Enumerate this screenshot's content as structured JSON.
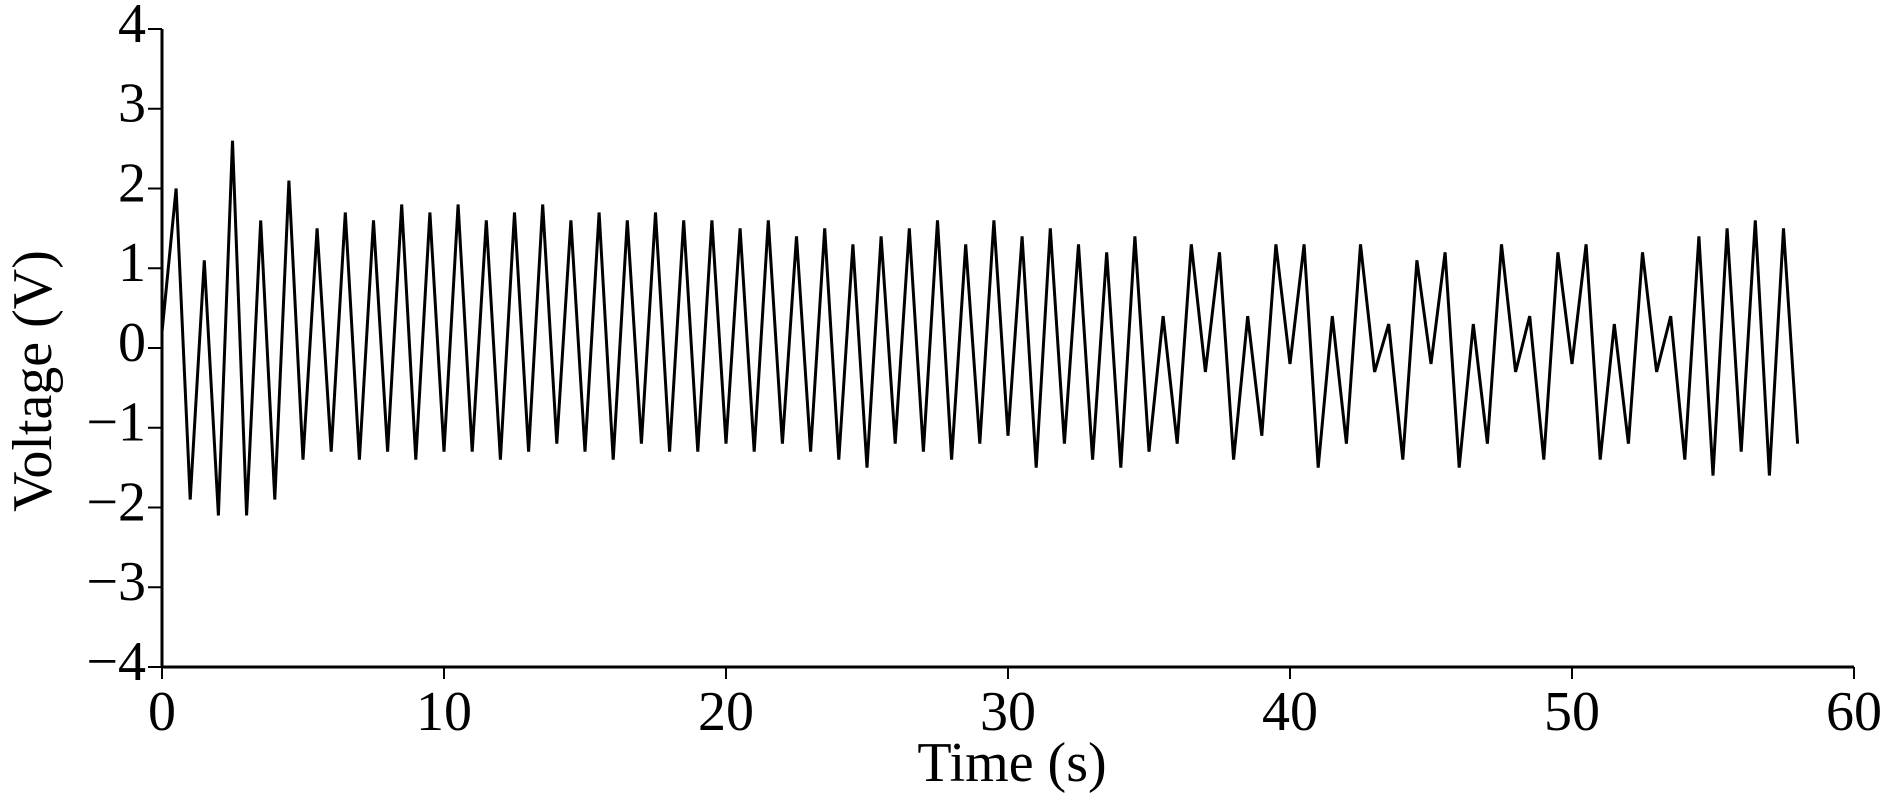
{
  "chart_data": {
    "type": "line",
    "x_label": "Time (s)",
    "y_label": "Voltage (V)",
    "x": [
      0,
      0.5,
      1,
      1.5,
      2,
      2.5,
      3,
      3.5,
      4,
      4.5,
      5,
      5.5,
      6,
      6.5,
      7,
      7.5,
      8,
      8.5,
      9,
      9.5,
      10,
      10.5,
      11,
      11.5,
      12,
      12.5,
      13,
      13.5,
      14,
      14.5,
      15,
      15.5,
      16,
      16.5,
      17,
      17.5,
      18,
      18.5,
      19,
      19.5,
      20,
      20.5,
      21,
      21.5,
      22,
      22.5,
      23,
      23.5,
      24,
      24.5,
      25,
      25.5,
      26,
      26.5,
      27,
      27.5,
      28,
      28.5,
      29,
      29.5,
      30,
      30.5,
      31,
      31.5,
      32,
      32.5,
      33,
      33.5,
      34,
      34.5,
      35,
      35.5,
      36,
      36.5,
      37,
      37.5,
      38,
      38.5,
      39,
      39.5,
      40,
      40.5,
      41,
      41.5,
      42,
      42.5,
      43,
      43.5,
      44,
      44.5,
      45,
      45.5,
      46,
      46.5,
      47,
      47.5,
      48,
      48.5,
      49,
      49.5,
      50,
      50.5,
      51,
      51.5,
      52,
      52.5,
      53,
      53.5,
      54,
      54.5,
      55,
      55.5,
      56,
      56.5,
      57,
      57.5,
      58
    ],
    "series": [
      {
        "color": "#000000",
        "values": [
          0.2,
          2.0,
          -1.9,
          1.1,
          -2.1,
          2.6,
          -2.1,
          1.6,
          -1.9,
          2.1,
          -1.4,
          1.5,
          -1.3,
          1.7,
          -1.4,
          1.6,
          -1.3,
          1.8,
          -1.4,
          1.7,
          -1.3,
          1.8,
          -1.3,
          1.6,
          -1.4,
          1.7,
          -1.3,
          1.8,
          -1.2,
          1.6,
          -1.3,
          1.7,
          -1.4,
          1.6,
          -1.2,
          1.7,
          -1.3,
          1.6,
          -1.3,
          1.6,
          -1.2,
          1.5,
          -1.3,
          1.6,
          -1.2,
          1.4,
          -1.3,
          1.5,
          -1.4,
          1.3,
          -1.5,
          1.4,
          -1.2,
          1.5,
          -1.3,
          1.6,
          -1.4,
          1.3,
          -1.2,
          1.6,
          -1.1,
          1.4,
          -1.5,
          1.5,
          -1.2,
          1.3,
          -1.4,
          1.2,
          -1.5,
          1.4,
          -1.3,
          0.4,
          -1.2,
          1.3,
          -0.3,
          1.2,
          -1.4,
          0.4,
          -1.1,
          1.3,
          -0.2,
          1.3,
          -1.5,
          0.4,
          -1.2,
          1.3,
          -0.3,
          0.3,
          -1.4,
          1.1,
          -0.2,
          1.2,
          -1.5,
          0.3,
          -1.2,
          1.3,
          -0.3,
          0.4,
          -1.4,
          1.2,
          -0.2,
          1.3,
          -1.4,
          0.3,
          -1.2,
          1.2,
          -0.3,
          0.4,
          -1.4,
          1.4,
          -1.6,
          1.5,
          -1.3,
          1.6,
          -1.6,
          1.5,
          -1.2
        ]
      }
    ],
    "xlim": [
      0,
      60
    ],
    "xticks": [
      0,
      10,
      20,
      30,
      40,
      50,
      60
    ],
    "ylim": [
      -4,
      4
    ],
    "yticks": [
      {
        "value": -4,
        "label": "−4"
      },
      {
        "value": -3,
        "label": "−3"
      },
      {
        "value": -2,
        "label": "−2"
      },
      {
        "value": -1,
        "label": "−1"
      },
      0,
      1,
      2,
      3,
      4
    ]
  }
}
